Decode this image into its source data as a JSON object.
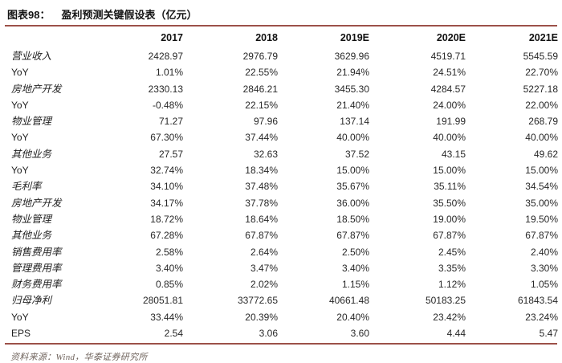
{
  "figure": {
    "label": "图表98：",
    "title": "盈利预测关键假设表（亿元）"
  },
  "table": {
    "columns": [
      "2017",
      "2018",
      "2019E",
      "2020E",
      "2021E"
    ],
    "rows": [
      {
        "label": "营业收入",
        "values": [
          "2428.97",
          "2976.79",
          "3629.96",
          "4519.71",
          "5545.59"
        ]
      },
      {
        "label": "YoY",
        "values": [
          "1.01%",
          "22.55%",
          "21.94%",
          "24.51%",
          "22.70%"
        ]
      },
      {
        "label": "房地产开发",
        "values": [
          "2330.13",
          "2846.21",
          "3455.30",
          "4284.57",
          "5227.18"
        ]
      },
      {
        "label": "YoY",
        "values": [
          "-0.48%",
          "22.15%",
          "21.40%",
          "24.00%",
          "22.00%"
        ]
      },
      {
        "label": "物业管理",
        "values": [
          "71.27",
          "97.96",
          "137.14",
          "191.99",
          "268.79"
        ]
      },
      {
        "label": "YoY",
        "values": [
          "67.30%",
          "37.44%",
          "40.00%",
          "40.00%",
          "40.00%"
        ]
      },
      {
        "label": "其他业务",
        "values": [
          "27.57",
          "32.63",
          "37.52",
          "43.15",
          "49.62"
        ]
      },
      {
        "label": "YoY",
        "values": [
          "32.74%",
          "18.34%",
          "15.00%",
          "15.00%",
          "15.00%"
        ]
      },
      {
        "label": "毛利率",
        "values": [
          "34.10%",
          "37.48%",
          "35.67%",
          "35.11%",
          "34.54%"
        ]
      },
      {
        "label": "房地产开发",
        "values": [
          "34.17%",
          "37.78%",
          "36.00%",
          "35.50%",
          "35.00%"
        ]
      },
      {
        "label": "物业管理",
        "values": [
          "18.72%",
          "18.64%",
          "18.50%",
          "19.00%",
          "19.50%"
        ]
      },
      {
        "label": "其他业务",
        "values": [
          "67.28%",
          "67.87%",
          "67.87%",
          "67.87%",
          "67.87%"
        ]
      },
      {
        "label": "销售费用率",
        "values": [
          "2.58%",
          "2.64%",
          "2.50%",
          "2.45%",
          "2.40%"
        ]
      },
      {
        "label": "管理费用率",
        "values": [
          "3.40%",
          "3.47%",
          "3.40%",
          "3.35%",
          "3.30%"
        ]
      },
      {
        "label": "财务费用率",
        "values": [
          "0.85%",
          "2.02%",
          "1.15%",
          "1.12%",
          "1.05%"
        ]
      },
      {
        "label": "归母净利",
        "values": [
          "28051.81",
          "33772.65",
          "40661.48",
          "50183.25",
          "61843.54"
        ]
      },
      {
        "label": "YoY",
        "values": [
          "33.44%",
          "20.39%",
          "20.40%",
          "23.42%",
          "23.24%"
        ]
      },
      {
        "label": "EPS",
        "values": [
          "2.54",
          "3.06",
          "3.60",
          "4.44",
          "5.47"
        ]
      }
    ]
  },
  "footer": {
    "source": "资料来源：Wind，华泰证券研究所"
  },
  "colors": {
    "accent_rule": "#9c5149",
    "footer_text": "#70645d"
  }
}
